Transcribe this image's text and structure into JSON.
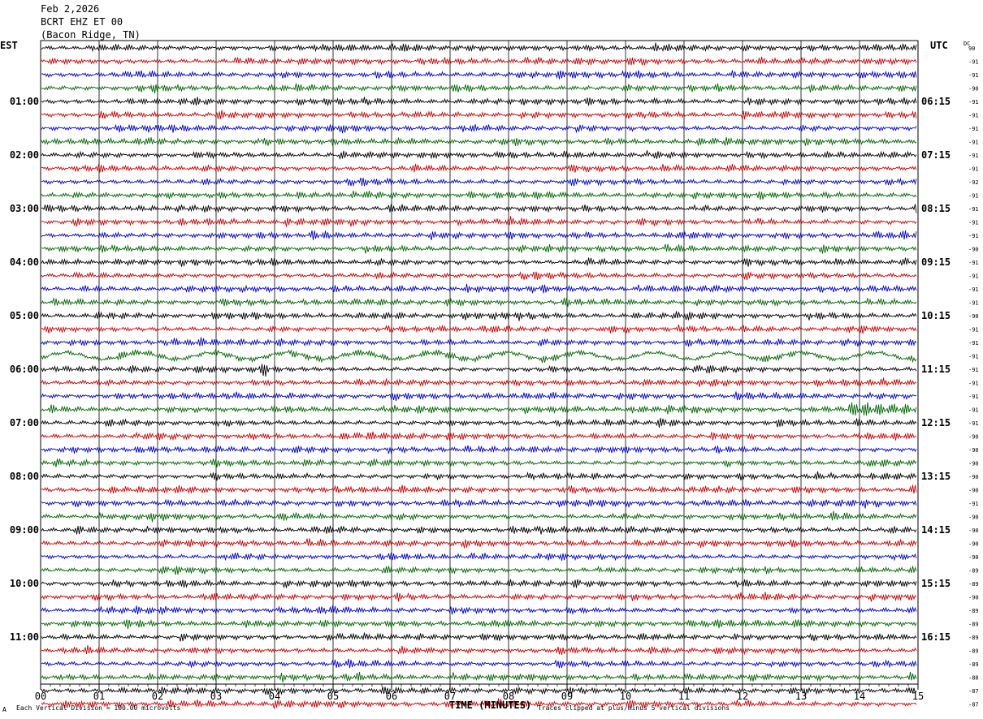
{
  "header": {
    "date": "Feb 2,2026",
    "station": "BCRT EHZ ET 00",
    "location": "(Bacon Ridge, TN)"
  },
  "left_axis_title": "EST",
  "right_axis_title": "UTC",
  "dc_label": "DC",
  "footer": {
    "corner_mark": "A",
    "scale_note": "Each Vertical Division = 100.00 microvolts",
    "x_title": "TIME (MINUTES)",
    "clip_note": "Traces clipped at plus/minus 5 vertical divisions"
  },
  "chart_data": {
    "type": "line",
    "title": "Feb 2,2026",
    "xlabel": "TIME (MINUTES)",
    "x_ticks": [
      "00",
      "01",
      "02",
      "03",
      "04",
      "05",
      "06",
      "07",
      "08",
      "09",
      "10",
      "11",
      "12",
      "13",
      "14",
      "15"
    ],
    "xlim": [
      0,
      15
    ],
    "trace_colors": [
      "#000000",
      "#cc0000",
      "#0000cc",
      "#006600"
    ],
    "left_hour_labels": [
      "01:00",
      "02:00",
      "03:00",
      "04:00",
      "05:00",
      "06:00",
      "07:00",
      "08:00",
      "09:00",
      "10:00",
      "11:00"
    ],
    "right_hour_labels": [
      "06:15",
      "07:15",
      "08:15",
      "09:15",
      "10:15",
      "11:15",
      "12:15",
      "13:15",
      "14:15",
      "15:15",
      "16:15"
    ],
    "dc_offsets": [
      "90",
      "-91",
      "-91",
      "-90",
      "-91",
      "-91",
      "-91",
      "-91",
      "-91",
      "-91",
      "-92",
      "-91",
      "-91",
      "-91",
      "-91",
      "-90",
      "-91",
      "-91",
      "-91",
      "-91",
      "-90",
      "-91",
      "-91",
      "-91",
      "-91",
      "-91",
      "-91",
      "-91",
      "-91",
      "-90",
      "-90",
      "-90",
      "-90",
      "-90",
      "-91",
      "-90",
      "-90",
      "-90",
      "-90",
      "-89",
      "-89",
      "-90",
      "-89",
      "-89",
      "-89",
      "-89",
      "-89",
      "-88",
      "-87",
      "-87"
    ],
    "rows_per_hour": 4,
    "row_minutes": 15,
    "notable_events": [
      {
        "row": 27,
        "x_start_min": 13.8,
        "x_end_min": 15,
        "description": "elevated amplitude"
      },
      {
        "row": 23,
        "x_start_min": 0,
        "x_end_min": 15,
        "description": "low-frequency wander"
      },
      {
        "row": 24,
        "x_start_min": 3.7,
        "x_end_min": 3.9,
        "description": "sharp spike"
      }
    ]
  }
}
